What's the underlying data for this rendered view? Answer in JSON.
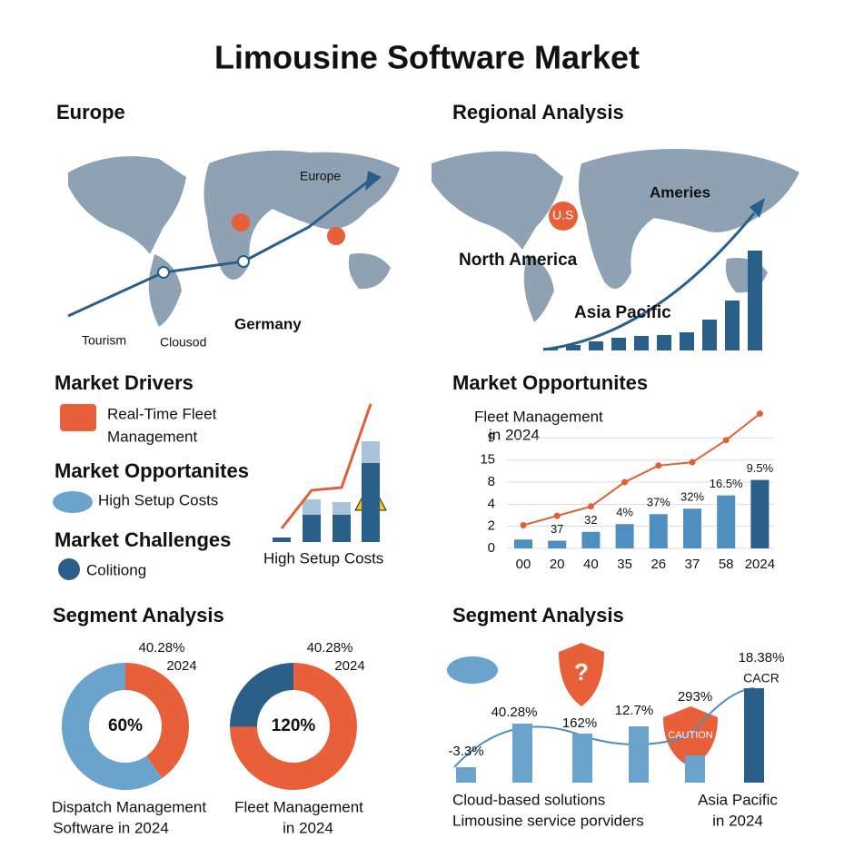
{
  "title": "Limousine Software Market",
  "europe": {
    "heading": "Europe",
    "map_labels": [
      "Europe",
      "Tourism",
      "Clousod",
      "Germany"
    ]
  },
  "regional": {
    "heading": "Regional Analysis",
    "map_labels": [
      "U.S",
      "Ameries",
      "North America",
      "Asia Pacific"
    ],
    "chart": {
      "type": "bar",
      "values": [
        3,
        6,
        10,
        14,
        16,
        17,
        20,
        34,
        55,
        110
      ],
      "color": "#2a5f8a"
    }
  },
  "drivers": {
    "heading": "Market Drivers",
    "item": [
      "Real-Time Fleet",
      "Management"
    ],
    "heading2": "Market Opportanites",
    "item2": "High Setup Costs",
    "heading3": "Market Challenges",
    "item3": "Colitiong",
    "chart": {
      "type": "stacked-bar",
      "caption": "High Setup Costs",
      "series": [
        {
          "color": "#2a5f8a",
          "values": [
            5,
            30,
            30,
            87
          ]
        },
        {
          "color": "#a9c4d8",
          "values": [
            0,
            17,
            14,
            24
          ]
        }
      ],
      "line": {
        "color": "#e0603a",
        "values": [
          15,
          57,
          60,
          152
        ]
      }
    }
  },
  "opportunities": {
    "heading": "Market Opportunites",
    "chart": {
      "type": "bar-line",
      "title": [
        "Fleet Management",
        "in 2024"
      ],
      "categories": [
        "00",
        "20",
        "40",
        "35",
        "26",
        "37",
        "58",
        "2024"
      ],
      "values": [
        0.8,
        0.7,
        1.5,
        2.2,
        3.1,
        3.6,
        4.8,
        6.2
      ],
      "line_values": [
        2.1,
        2.95,
        3.8,
        6,
        7.5,
        7.8,
        9.8,
        12.2
      ],
      "bar_notes": [
        null,
        "37",
        "32",
        "4%",
        "37%",
        "32%",
        "16.5%",
        "9.5%"
      ],
      "ylim": [
        0,
        12.5
      ],
      "yticks": [
        0,
        2,
        4,
        {
          "value": 6,
          "label": "8"
        },
        {
          "value": 8,
          "label": "15"
        },
        {
          "value": 10,
          "label": "9"
        }
      ],
      "grid": true,
      "bar_color": "#4f8fbf",
      "last_bar_color": "#2a5f8a",
      "line_color": "#e0603a"
    }
  },
  "segments_left": {
    "heading": "Segment Analysis",
    "donuts": [
      {
        "type": "donut",
        "values": [
          40.28,
          60
        ],
        "value_labels": [
          "40.28%",
          "60%"
        ],
        "colors": [
          "#e8603a",
          "#6aa3cc"
        ],
        "center_index": 1,
        "year": "2024",
        "caption": [
          "Dispatch Management",
          "Software in 2024"
        ]
      },
      {
        "type": "donut",
        "values": [
          120,
          40.28
        ],
        "value_labels": [
          "120%",
          "40.28%"
        ],
        "colors": [
          "#e8603a",
          "#2a5f8a"
        ],
        "center_index": 0,
        "year": "2024",
        "caption": [
          "Fleet Management",
          "in 2024"
        ]
      }
    ]
  },
  "segments_right": {
    "heading": "Segment Analysis",
    "chart": {
      "type": "bar",
      "values": [
        17,
        65,
        54,
        62,
        30,
        104
      ],
      "color": "#6aa3cc",
      "last_color": "#2a5f8a",
      "annotations": [
        "-3.3%",
        "40.28%",
        "162%",
        "12.7%",
        "293%",
        "18.38%"
      ],
      "note": "CACR",
      "badge": "CAUTION",
      "captions": [
        "Cloud-based solutions",
        "Limousine service porviders"
      ],
      "captions2": [
        "Asia Pacific",
        "in 2024"
      ]
    }
  }
}
